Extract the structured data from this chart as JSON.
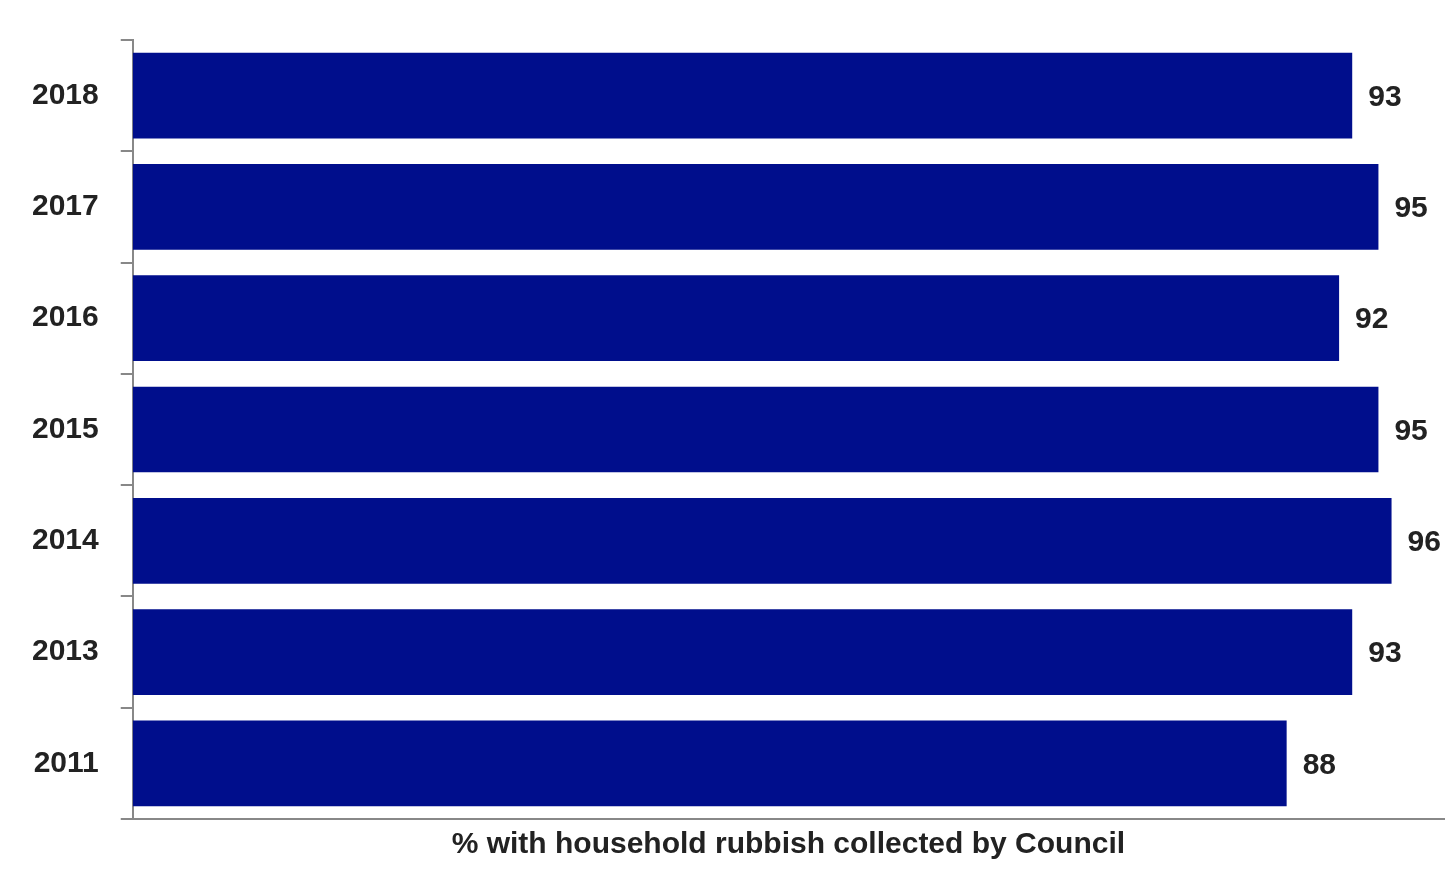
{
  "chart_data": {
    "type": "bar",
    "orientation": "horizontal",
    "xlabel": "% with household rubbish collected by Council",
    "categories": [
      "2018",
      "2017",
      "2016",
      "2015",
      "2014",
      "2013",
      "2011"
    ],
    "values": [
      93,
      95,
      92,
      95,
      96,
      93,
      88
    ],
    "color": "#000e8c",
    "xlim": [
      0,
      100
    ],
    "data_labels": true,
    "tick_labels": "y",
    "grid": false
  }
}
